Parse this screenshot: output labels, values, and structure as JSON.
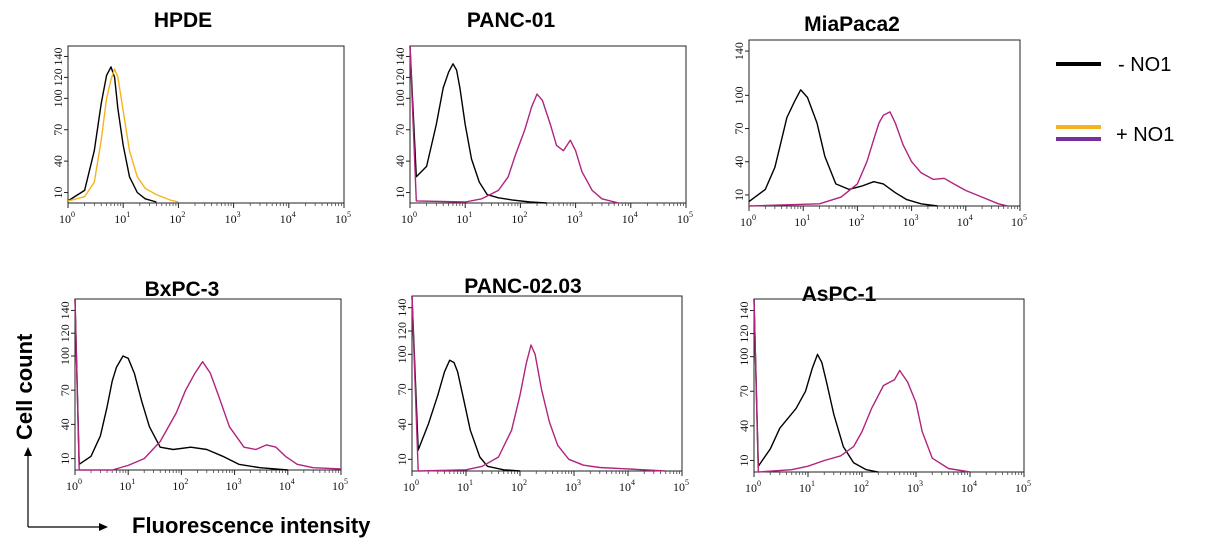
{
  "legend": {
    "minus_label": "- NO1",
    "plus_label": "+ NO1",
    "minus_color": "#000000",
    "plus_colors": [
      "#f5b41e",
      "#7a2e9a"
    ]
  },
  "axes": {
    "ylabel": "Cell count",
    "xlabel": "Fluorescence intensity"
  },
  "chart_data": [
    {
      "type": "line",
      "title": "HPDE",
      "xscale": "log",
      "xlim": [
        1,
        100000
      ],
      "ylim": [
        0,
        150
      ],
      "yticks": [
        "10",
        "40",
        "70",
        "100",
        "120",
        "140"
      ],
      "series": [
        {
          "color": "#000000",
          "points": [
            [
              1,
              2
            ],
            [
              2,
              12
            ],
            [
              3,
              50
            ],
            [
              4,
              95
            ],
            [
              5,
              122
            ],
            [
              6,
              130
            ],
            [
              7,
              120
            ],
            [
              8,
              90
            ],
            [
              10,
              55
            ],
            [
              13,
              25
            ],
            [
              18,
              10
            ],
            [
              25,
              4
            ],
            [
              40,
              1
            ]
          ]
        },
        {
          "color": "#f5b41e",
          "points": [
            [
              1,
              2
            ],
            [
              2,
              6
            ],
            [
              3,
              20
            ],
            [
              4,
              60
            ],
            [
              5,
              100
            ],
            [
              6,
              118
            ],
            [
              7,
              128
            ],
            [
              8,
              120
            ],
            [
              10,
              88
            ],
            [
              13,
              50
            ],
            [
              18,
              25
            ],
            [
              25,
              14
            ],
            [
              40,
              8
            ],
            [
              70,
              3
            ],
            [
              100,
              1
            ]
          ]
        }
      ]
    },
    {
      "type": "line",
      "title": "PANC-01",
      "xscale": "log",
      "xlim": [
        1,
        100000
      ],
      "ylim": [
        0,
        150
      ],
      "yticks": [
        "10",
        "40",
        "70",
        "100",
        "120",
        "140"
      ],
      "series": [
        {
          "color": "#000000",
          "points": [
            [
              1,
              150
            ],
            [
              1.3,
              25
            ],
            [
              2,
              35
            ],
            [
              3,
              75
            ],
            [
              4,
              110
            ],
            [
              5,
              125
            ],
            [
              6,
              133
            ],
            [
              7,
              127
            ],
            [
              8,
              110
            ],
            [
              10,
              75
            ],
            [
              13,
              42
            ],
            [
              18,
              20
            ],
            [
              25,
              8
            ],
            [
              40,
              5
            ],
            [
              70,
              3
            ],
            [
              150,
              1
            ],
            [
              300,
              0
            ]
          ]
        },
        {
          "color": "#b0247e",
          "points": [
            [
              1,
              150
            ],
            [
              1.3,
              2
            ],
            [
              10,
              1
            ],
            [
              20,
              4
            ],
            [
              40,
              12
            ],
            [
              60,
              25
            ],
            [
              80,
              45
            ],
            [
              120,
              70
            ],
            [
              160,
              92
            ],
            [
              200,
              104
            ],
            [
              250,
              98
            ],
            [
              350,
              75
            ],
            [
              450,
              55
            ],
            [
              600,
              50
            ],
            [
              800,
              60
            ],
            [
              1000,
              50
            ],
            [
              1300,
              30
            ],
            [
              2000,
              12
            ],
            [
              3000,
              4
            ],
            [
              6000,
              0
            ]
          ]
        }
      ]
    },
    {
      "type": "line",
      "title": "MiaPaca2",
      "xscale": "log",
      "xlim": [
        1,
        100000
      ],
      "ylim": [
        0,
        150
      ],
      "yticks": [
        "10",
        "40",
        "70",
        "100",
        "140"
      ],
      "series": [
        {
          "color": "#000000",
          "points": [
            [
              1,
              4
            ],
            [
              2,
              15
            ],
            [
              3,
              35
            ],
            [
              4,
              60
            ],
            [
              5,
              80
            ],
            [
              7,
              95
            ],
            [
              9,
              105
            ],
            [
              12,
              98
            ],
            [
              18,
              75
            ],
            [
              25,
              45
            ],
            [
              40,
              20
            ],
            [
              70,
              15
            ],
            [
              120,
              18
            ],
            [
              200,
              22
            ],
            [
              300,
              20
            ],
            [
              500,
              12
            ],
            [
              800,
              6
            ],
            [
              1500,
              2
            ],
            [
              3000,
              0
            ]
          ]
        },
        {
          "color": "#b0247e",
          "points": [
            [
              1,
              0
            ],
            [
              20,
              2
            ],
            [
              50,
              8
            ],
            [
              100,
              20
            ],
            [
              150,
              40
            ],
            [
              200,
              60
            ],
            [
              250,
              75
            ],
            [
              300,
              82
            ],
            [
              400,
              85
            ],
            [
              500,
              75
            ],
            [
              700,
              55
            ],
            [
              1000,
              40
            ],
            [
              1500,
              30
            ],
            [
              2500,
              24
            ],
            [
              4000,
              25
            ],
            [
              6000,
              20
            ],
            [
              10000,
              14
            ],
            [
              20000,
              8
            ],
            [
              40000,
              2
            ],
            [
              60000,
              0
            ]
          ]
        }
      ]
    },
    {
      "type": "line",
      "title": "BxPC-3",
      "xscale": "log",
      "xlim": [
        1,
        100000
      ],
      "ylim": [
        0,
        150
      ],
      "yticks": [
        "10",
        "40",
        "70",
        "100",
        "120",
        "140"
      ],
      "series": [
        {
          "color": "#000000",
          "points": [
            [
              1,
              150
            ],
            [
              1.2,
              5
            ],
            [
              2,
              12
            ],
            [
              3,
              30
            ],
            [
              4,
              55
            ],
            [
              5,
              78
            ],
            [
              6,
              90
            ],
            [
              8,
              100
            ],
            [
              10,
              98
            ],
            [
              13,
              85
            ],
            [
              18,
              60
            ],
            [
              25,
              38
            ],
            [
              40,
              20
            ],
            [
              70,
              18
            ],
            [
              150,
              20
            ],
            [
              300,
              18
            ],
            [
              600,
              12
            ],
            [
              1200,
              5
            ],
            [
              3000,
              2
            ],
            [
              10000,
              0
            ]
          ]
        },
        {
          "color": "#b0247e",
          "points": [
            [
              1,
              150
            ],
            [
              1.2,
              0
            ],
            [
              5,
              0
            ],
            [
              10,
              4
            ],
            [
              20,
              10
            ],
            [
              40,
              25
            ],
            [
              80,
              50
            ],
            [
              120,
              70
            ],
            [
              180,
              85
            ],
            [
              250,
              95
            ],
            [
              350,
              85
            ],
            [
              500,
              65
            ],
            [
              800,
              38
            ],
            [
              1500,
              20
            ],
            [
              2500,
              18
            ],
            [
              4000,
              22
            ],
            [
              6000,
              20
            ],
            [
              9000,
              12
            ],
            [
              15000,
              5
            ],
            [
              30000,
              2
            ],
            [
              100000,
              1
            ]
          ]
        }
      ]
    },
    {
      "type": "line",
      "title": "PANC-02.03",
      "xscale": "log",
      "xlim": [
        1,
        100000
      ],
      "ylim": [
        0,
        150
      ],
      "yticks": [
        "10",
        "40",
        "70",
        "100",
        "120",
        "140"
      ],
      "series": [
        {
          "color": "#000000",
          "points": [
            [
              1,
              150
            ],
            [
              1.3,
              18
            ],
            [
              2,
              40
            ],
            [
              3,
              65
            ],
            [
              4,
              85
            ],
            [
              5,
              95
            ],
            [
              6,
              93
            ],
            [
              7,
              85
            ],
            [
              9,
              62
            ],
            [
              12,
              35
            ],
            [
              18,
              12
            ],
            [
              25,
              4
            ],
            [
              50,
              1
            ],
            [
              100,
              0
            ]
          ]
        },
        {
          "color": "#b0247e",
          "points": [
            [
              1,
              150
            ],
            [
              1.3,
              0
            ],
            [
              10,
              1
            ],
            [
              20,
              4
            ],
            [
              40,
              12
            ],
            [
              70,
              35
            ],
            [
              100,
              65
            ],
            [
              130,
              92
            ],
            [
              160,
              108
            ],
            [
              190,
              100
            ],
            [
              250,
              70
            ],
            [
              350,
              42
            ],
            [
              500,
              22
            ],
            [
              800,
              10
            ],
            [
              1500,
              5
            ],
            [
              3000,
              3
            ],
            [
              8000,
              2
            ],
            [
              20000,
              1
            ],
            [
              50000,
              0
            ]
          ]
        }
      ]
    },
    {
      "type": "line",
      "title": "AsPC-1",
      "xscale": "log",
      "xlim": [
        1,
        100000
      ],
      "ylim": [
        0,
        150
      ],
      "yticks": [
        "10",
        "40",
        "70",
        "100",
        "120",
        "140"
      ],
      "series": [
        {
          "color": "#000000",
          "points": [
            [
              1,
              150
            ],
            [
              1.2,
              5
            ],
            [
              2,
              20
            ],
            [
              3,
              38
            ],
            [
              4,
              45
            ],
            [
              6,
              55
            ],
            [
              9,
              70
            ],
            [
              12,
              90
            ],
            [
              15,
              102
            ],
            [
              18,
              95
            ],
            [
              22,
              78
            ],
            [
              30,
              50
            ],
            [
              45,
              22
            ],
            [
              70,
              8
            ],
            [
              120,
              2
            ],
            [
              200,
              0
            ]
          ]
        },
        {
          "color": "#b0247e",
          "points": [
            [
              1,
              150
            ],
            [
              1.2,
              0
            ],
            [
              5,
              2
            ],
            [
              10,
              5
            ],
            [
              20,
              10
            ],
            [
              40,
              14
            ],
            [
              70,
              22
            ],
            [
              100,
              35
            ],
            [
              150,
              55
            ],
            [
              250,
              75
            ],
            [
              400,
              80
            ],
            [
              500,
              88
            ],
            [
              700,
              78
            ],
            [
              1000,
              60
            ],
            [
              1300,
              35
            ],
            [
              2000,
              12
            ],
            [
              4000,
              3
            ],
            [
              10000,
              0
            ]
          ]
        }
      ]
    }
  ]
}
